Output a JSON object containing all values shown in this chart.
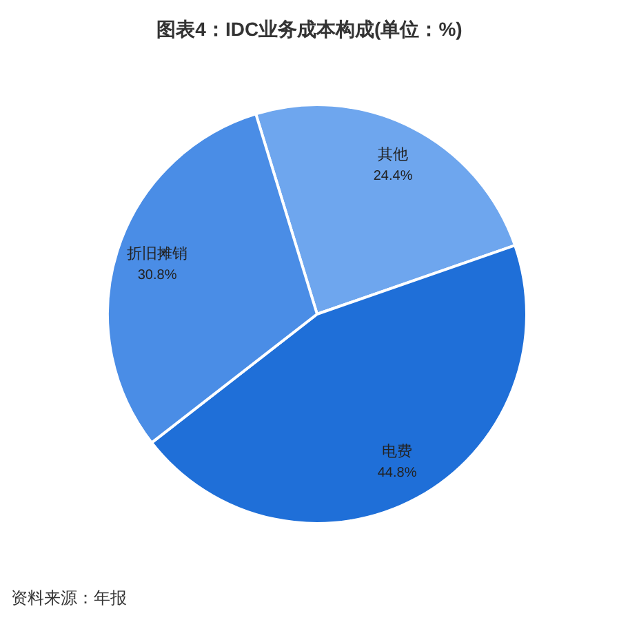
{
  "chart_data": {
    "type": "pie",
    "title": "图表4：IDC业务成本构成(单位：%)",
    "categories": [
      "其他",
      "电费",
      "折旧摊销"
    ],
    "values": [
      24.4,
      44.8,
      30.8
    ],
    "colors": [
      "#6ea6ee",
      "#1f6fd8",
      "#4a8de6"
    ],
    "value_labels": [
      "24.4%",
      "44.8%",
      "30.8%"
    ],
    "annotations": [
      "资料来源：年报"
    ]
  }
}
